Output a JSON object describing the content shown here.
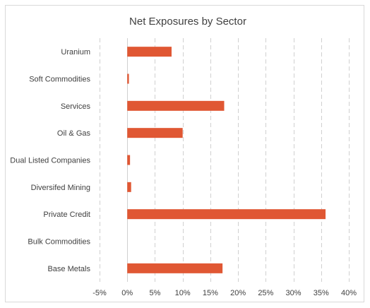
{
  "chart_data": {
    "type": "bar",
    "orientation": "horizontal",
    "title": "Net Exposures by Sector",
    "xlabel": "",
    "ylabel": "",
    "categories": [
      "Uranium",
      "Soft Commodities",
      "Services",
      "Oil & Gas",
      "Dual Listed Companies",
      "Diversifed Mining",
      "Private Credit",
      "Bulk Commodities",
      "Base Metals"
    ],
    "values": [
      8.0,
      0.3,
      17.5,
      10.0,
      0.5,
      0.7,
      35.8,
      0.0,
      17.2
    ],
    "xlim": [
      -5,
      40
    ],
    "xticks": [
      -5,
      0,
      5,
      10,
      15,
      20,
      25,
      30,
      35,
      40
    ],
    "xtick_labels": [
      "-5%",
      "0%",
      "5%",
      "10%",
      "15%",
      "20%",
      "25%",
      "30%",
      "35%",
      "40%"
    ],
    "grid": true,
    "legend": "none",
    "bar_color": "#e05733"
  }
}
